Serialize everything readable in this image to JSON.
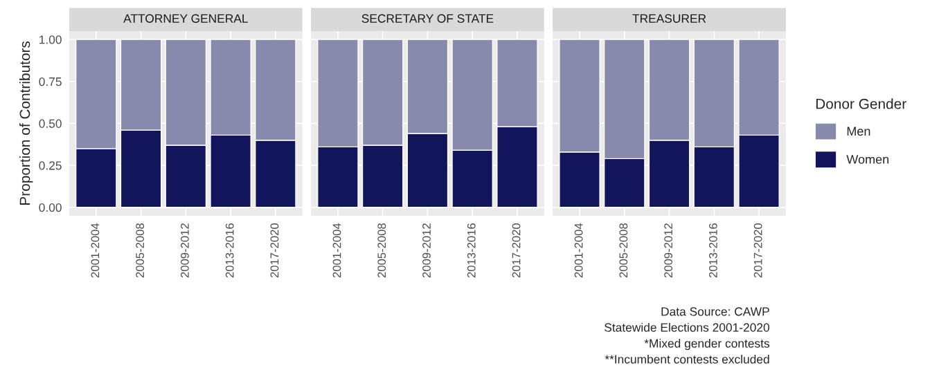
{
  "chart_data": [
    {
      "type": "bar",
      "stacked": true,
      "title": "ATTORNEY GENERAL",
      "ylabel": "Proportion of Contributors",
      "categories": [
        "2001-2004",
        "2005-2008",
        "2009-2012",
        "2013-2016",
        "2017-2020"
      ],
      "series": [
        {
          "name": "Women",
          "color": "#13155c",
          "values": [
            0.35,
            0.46,
            0.37,
            0.43,
            0.4
          ]
        },
        {
          "name": "Men",
          "color": "#8789ad",
          "values": [
            0.65,
            0.54,
            0.63,
            0.57,
            0.6
          ]
        }
      ],
      "ylim": [
        -0.05,
        1.05
      ],
      "yticks": [
        {
          "value": 0,
          "label": "0.00"
        },
        {
          "value": 0.25,
          "label": "0.25"
        },
        {
          "value": 0.5,
          "label": "0.50"
        },
        {
          "value": 0.75,
          "label": "0.75"
        },
        {
          "value": 1,
          "label": "1.00"
        }
      ],
      "grid": true,
      "legend": "right",
      "legend_title": "Donor Gender"
    },
    {
      "type": "bar",
      "stacked": true,
      "title": "SECRETARY OF STATE",
      "categories": [
        "2001-2004",
        "2005-2008",
        "2009-2012",
        "2013-2016",
        "2017-2020"
      ],
      "series": [
        {
          "color": "#13155c",
          "values": [
            0.36,
            0.37,
            0.44,
            0.34,
            0.48
          ]
        },
        {
          "color": "#8789ad",
          "values": [
            0.64,
            0.63,
            0.56,
            0.66,
            0.52
          ]
        }
      ],
      "ylim": [
        -0.05,
        1.05
      ],
      "yticks": [
        {
          "value": 0,
          "label": null
        },
        {
          "value": 0.25,
          "label": null
        },
        {
          "value": 0.5,
          "label": null
        },
        {
          "value": 0.75,
          "label": null
        },
        {
          "value": 1,
          "label": null
        }
      ],
      "tick_labels": "x",
      "grid": true
    },
    {
      "type": "bar",
      "stacked": true,
      "title": "TREASURER",
      "categories": [
        "2001-2004",
        "2005-2008",
        "2009-2012",
        "2013-2016",
        "2017-2020"
      ],
      "series": [
        {
          "color": "#13155c",
          "values": [
            0.33,
            0.29,
            0.4,
            0.36,
            0.43
          ]
        },
        {
          "color": "#8789ad",
          "values": [
            0.67,
            0.71,
            0.6,
            0.64,
            0.57
          ]
        }
      ],
      "ylim": [
        -0.05,
        1.05
      ],
      "yticks": [
        {
          "value": 0,
          "label": null
        },
        {
          "value": 0.25,
          "label": null
        },
        {
          "value": 0.5,
          "label": null
        },
        {
          "value": 0.75,
          "label": null
        },
        {
          "value": 1,
          "label": null
        }
      ],
      "tick_labels": "x",
      "grid": true,
      "annotations": [
        "Data Source: CAWP",
        "Statewide Elections 2001-2020",
        "*Mixed gender contests",
        "**Incumbent contests excluded"
      ]
    }
  ]
}
